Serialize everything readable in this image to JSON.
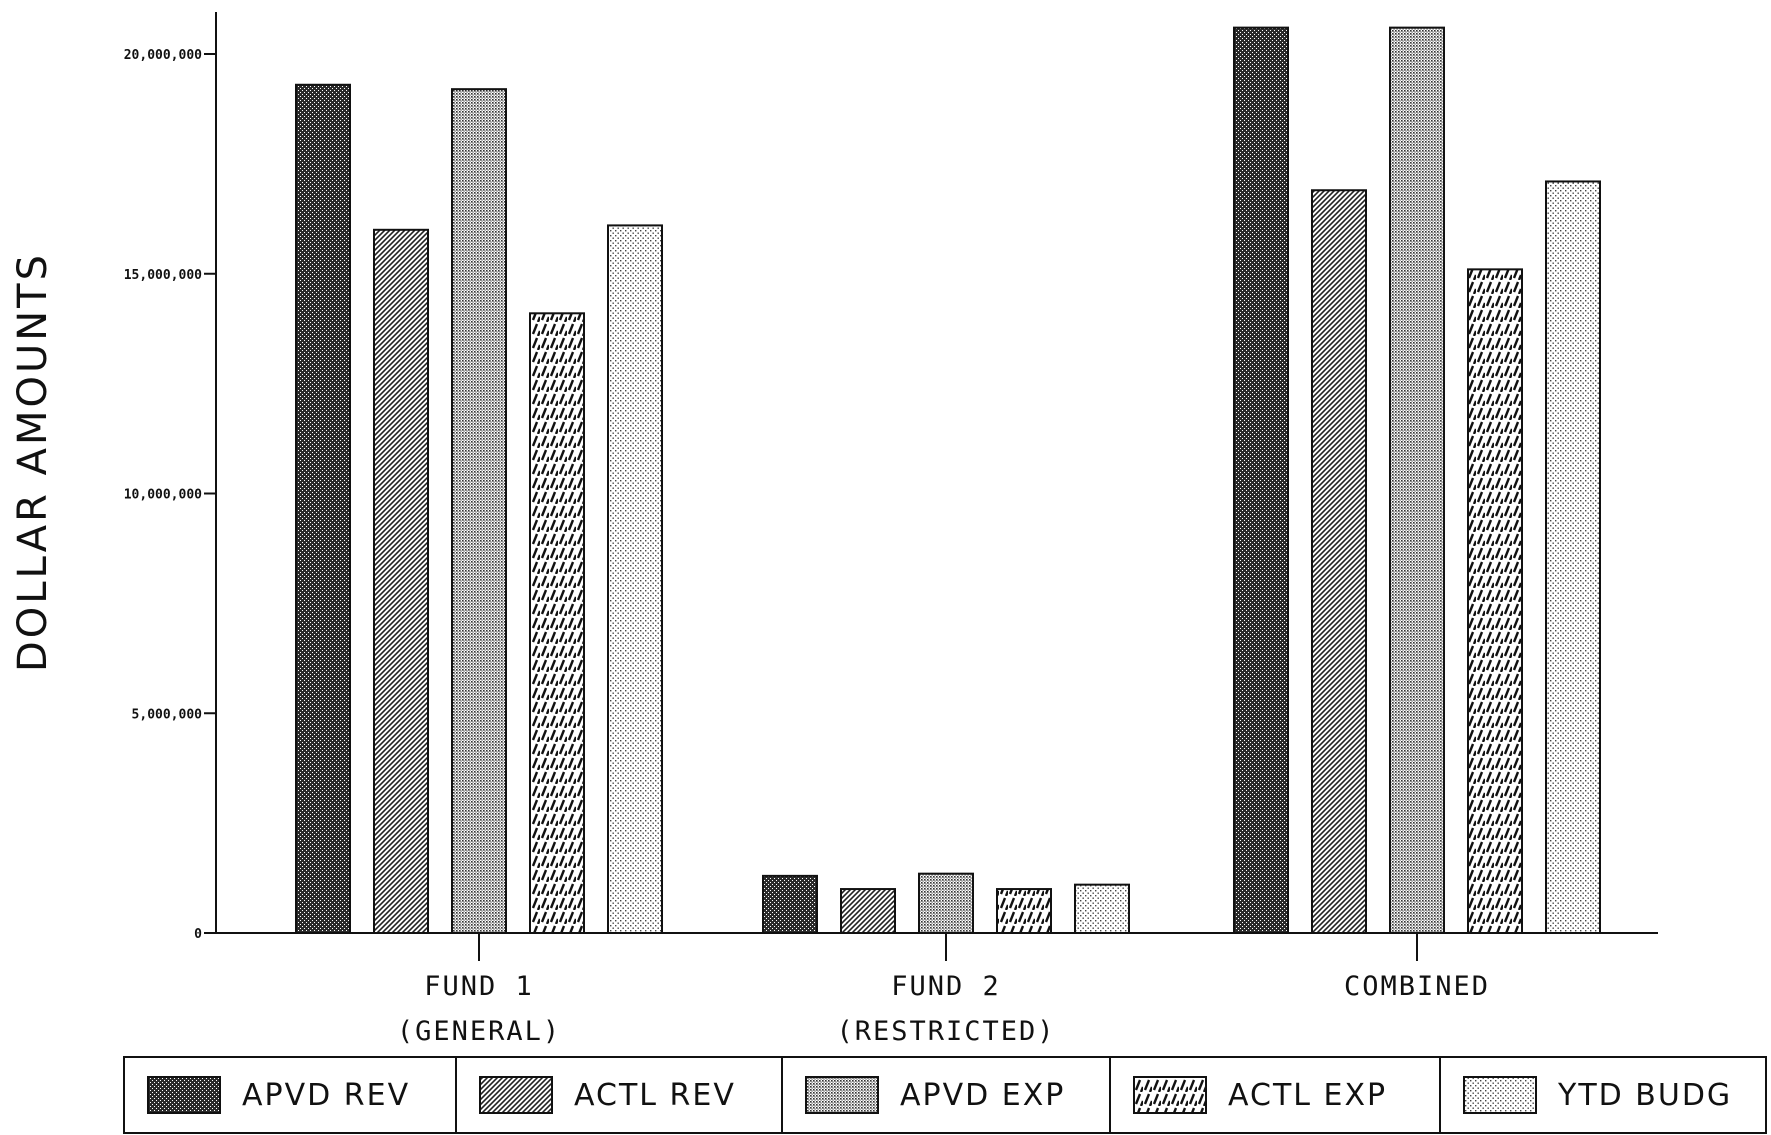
{
  "chart_data": {
    "type": "bar",
    "ylabel": "DOLLAR AMOUNTS",
    "ylim": [
      0,
      21000000
    ],
    "yticks": [
      0,
      5000000,
      10000000,
      15000000,
      20000000
    ],
    "ytick_labels": [
      "0",
      "5,000,000",
      "10,000,000",
      "15,000,000",
      "20,000,000"
    ],
    "categories": [
      [
        "FUND 1",
        "(GENERAL)"
      ],
      [
        "FUND 2",
        "(RESTRICTED)"
      ],
      [
        "COMBINED",
        ""
      ]
    ],
    "series": [
      {
        "name": "APVD REV",
        "pattern": "dense",
        "values": [
          19300000,
          1300000,
          20600000
        ]
      },
      {
        "name": "ACTL REV",
        "pattern": "diag",
        "values": [
          16000000,
          1000000,
          16900000
        ]
      },
      {
        "name": "APVD EXP",
        "pattern": "dots",
        "values": [
          19200000,
          1350000,
          20600000
        ]
      },
      {
        "name": "ACTL EXP",
        "pattern": "dash",
        "values": [
          14100000,
          1000000,
          15100000
        ]
      },
      {
        "name": "YTD BUDG",
        "pattern": "sparse",
        "values": [
          16100000,
          1100000,
          17100000
        ]
      }
    ],
    "legend_position": "bottom",
    "grid": false
  }
}
